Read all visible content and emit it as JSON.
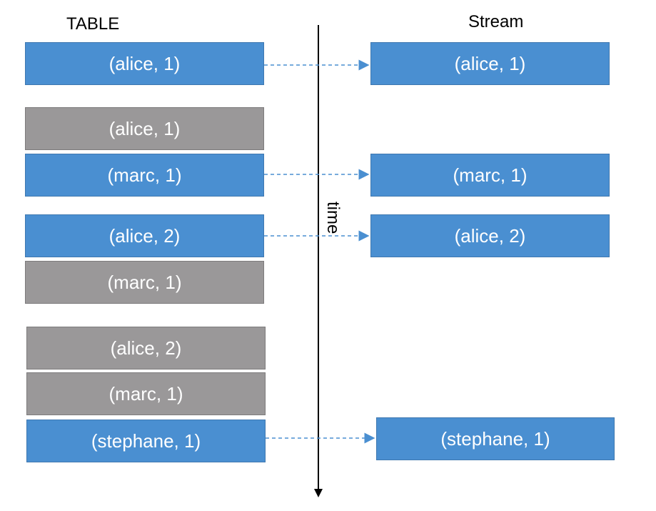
{
  "headings": {
    "table": "TABLE",
    "stream": "Stream"
  },
  "axis": {
    "label": "time"
  },
  "table_rows": [
    {
      "text": "(alice, 1)",
      "state": "current"
    },
    {
      "text": "(alice, 1)",
      "state": "superseded"
    },
    {
      "text": "(marc, 1)",
      "state": "current"
    },
    {
      "text": "(alice, 2)",
      "state": "current"
    },
    {
      "text": "(marc, 1)",
      "state": "superseded"
    },
    {
      "text": "(alice, 2)",
      "state": "superseded"
    },
    {
      "text": "(marc, 1)",
      "state": "superseded"
    },
    {
      "text": "(stephane, 1)",
      "state": "current"
    }
  ],
  "stream_events": [
    {
      "text": "(alice, 1)"
    },
    {
      "text": "(marc, 1)"
    },
    {
      "text": "(alice, 2)"
    },
    {
      "text": "(stephane, 1)"
    }
  ],
  "colors": {
    "current": "#4a8fd1",
    "superseded": "#9a9899",
    "arrow": "#4a8fd1",
    "axis": "#000000"
  }
}
